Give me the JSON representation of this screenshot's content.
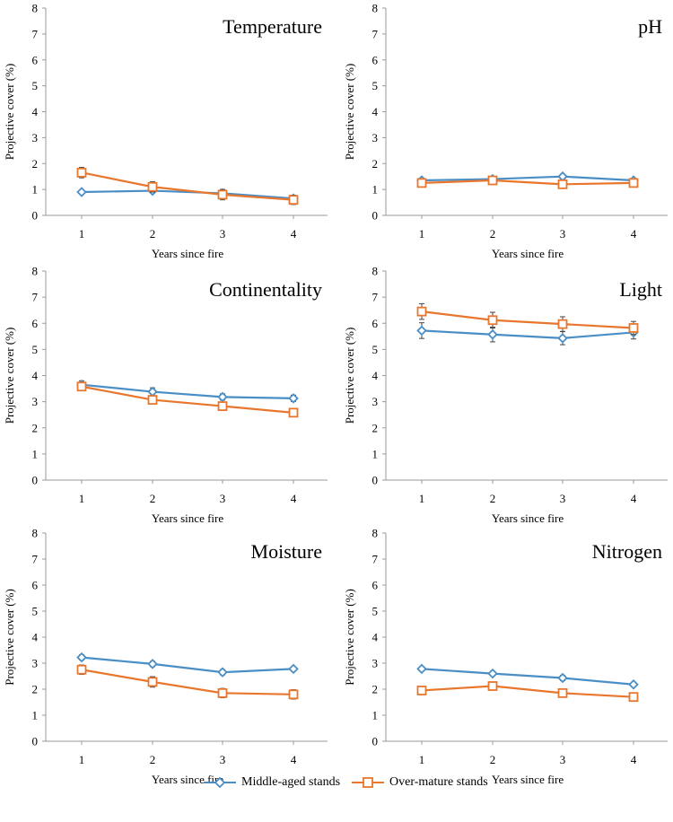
{
  "chart_data": [
    {
      "type": "line",
      "title": "Temperature",
      "xlabel": "Years since fire",
      "ylabel": "Projective cover (%)",
      "x": [
        1,
        2,
        3,
        4
      ],
      "ylim": [
        0,
        8
      ],
      "yticks": [
        0,
        1,
        2,
        3,
        4,
        5,
        6,
        7,
        8
      ],
      "series": [
        {
          "name": "Middle-aged stands",
          "values": [
            0.9,
            0.95,
            0.85,
            0.65
          ],
          "errors": [
            0.05,
            0.06,
            0.15,
            0.12
          ]
        },
        {
          "name": "Over-mature stands",
          "values": [
            1.65,
            1.1,
            0.8,
            0.6
          ],
          "errors": [
            0.2,
            0.2,
            0.2,
            0.18
          ]
        }
      ]
    },
    {
      "type": "line",
      "title": "pH",
      "xlabel": "Years since fire",
      "ylabel": "Projective cover (%)",
      "x": [
        1,
        2,
        3,
        4
      ],
      "ylim": [
        0,
        8
      ],
      "yticks": [
        0,
        1,
        2,
        3,
        4,
        5,
        6,
        7,
        8
      ],
      "series": [
        {
          "name": "Middle-aged stands",
          "values": [
            1.35,
            1.4,
            1.5,
            1.35
          ],
          "errors": [
            0.05,
            0.05,
            0.06,
            0.05
          ]
        },
        {
          "name": "Over-mature stands",
          "values": [
            1.25,
            1.35,
            1.2,
            1.25
          ],
          "errors": [
            0.05,
            0.06,
            0.06,
            0.05
          ]
        }
      ]
    },
    {
      "type": "line",
      "title": "Continentality",
      "xlabel": "Years since fire",
      "ylabel": "Projective cover (%)",
      "x": [
        1,
        2,
        3,
        4
      ],
      "ylim": [
        0,
        8
      ],
      "yticks": [
        0,
        1,
        2,
        3,
        4,
        5,
        6,
        7,
        8
      ],
      "series": [
        {
          "name": "Middle-aged stands",
          "values": [
            3.65,
            3.38,
            3.18,
            3.13
          ],
          "errors": [
            0.15,
            0.15,
            0.12,
            0.12
          ]
        },
        {
          "name": "Over-mature stands",
          "values": [
            3.58,
            3.07,
            2.83,
            2.58
          ],
          "errors": [
            0.12,
            0.12,
            0.08,
            0.08
          ]
        }
      ]
    },
    {
      "type": "line",
      "title": "Light",
      "xlabel": "Years since fire",
      "ylabel": "Projective cover (%)",
      "x": [
        1,
        2,
        3,
        4
      ],
      "ylim": [
        0,
        8
      ],
      "yticks": [
        0,
        1,
        2,
        3,
        4,
        5,
        6,
        7,
        8
      ],
      "series": [
        {
          "name": "Middle-aged stands",
          "values": [
            5.72,
            5.57,
            5.43,
            5.65
          ],
          "errors": [
            0.3,
            0.28,
            0.25,
            0.25
          ]
        },
        {
          "name": "Over-mature stands",
          "values": [
            6.45,
            6.12,
            5.97,
            5.82
          ],
          "errors": [
            0.3,
            0.3,
            0.28,
            0.25
          ]
        }
      ]
    },
    {
      "type": "line",
      "title": "Moisture",
      "xlabel": "Years since fire",
      "ylabel": "Projective cover (%)",
      "x": [
        1,
        2,
        3,
        4
      ],
      "ylim": [
        0,
        8
      ],
      "yticks": [
        0,
        1,
        2,
        3,
        4,
        5,
        6,
        7,
        8
      ],
      "series": [
        {
          "name": "Middle-aged stands",
          "values": [
            3.22,
            2.97,
            2.65,
            2.78
          ],
          "errors": [
            0.1,
            0.1,
            0.1,
            0.08
          ]
        },
        {
          "name": "Over-mature stands",
          "values": [
            2.75,
            2.28,
            1.85,
            1.8
          ],
          "errors": [
            0.18,
            0.2,
            0.18,
            0.18
          ]
        }
      ]
    },
    {
      "type": "line",
      "title": "Nitrogen",
      "xlabel": "Years since fire",
      "ylabel": "Projective cover (%)",
      "x": [
        1,
        2,
        3,
        4
      ],
      "ylim": [
        0,
        8
      ],
      "yticks": [
        0,
        1,
        2,
        3,
        4,
        5,
        6,
        7,
        8
      ],
      "series": [
        {
          "name": "Middle-aged stands",
          "values": [
            2.78,
            2.6,
            2.43,
            2.18
          ],
          "errors": [
            0.08,
            0.08,
            0.1,
            0.08
          ]
        },
        {
          "name": "Over-mature stands",
          "values": [
            1.95,
            2.12,
            1.85,
            1.7
          ],
          "errors": [
            0.06,
            0.06,
            0.06,
            0.06
          ]
        }
      ]
    }
  ],
  "legend": {
    "items": [
      {
        "label": "Middle-aged stands",
        "marker": "diamond",
        "color": "#4a8ec6"
      },
      {
        "label": "Over-mature stands",
        "marker": "square",
        "color": "#e8762c"
      }
    ]
  },
  "colors": {
    "series": [
      "#4a8ec6",
      "#e8762c"
    ],
    "axis": "#999999",
    "text": "#000000"
  }
}
